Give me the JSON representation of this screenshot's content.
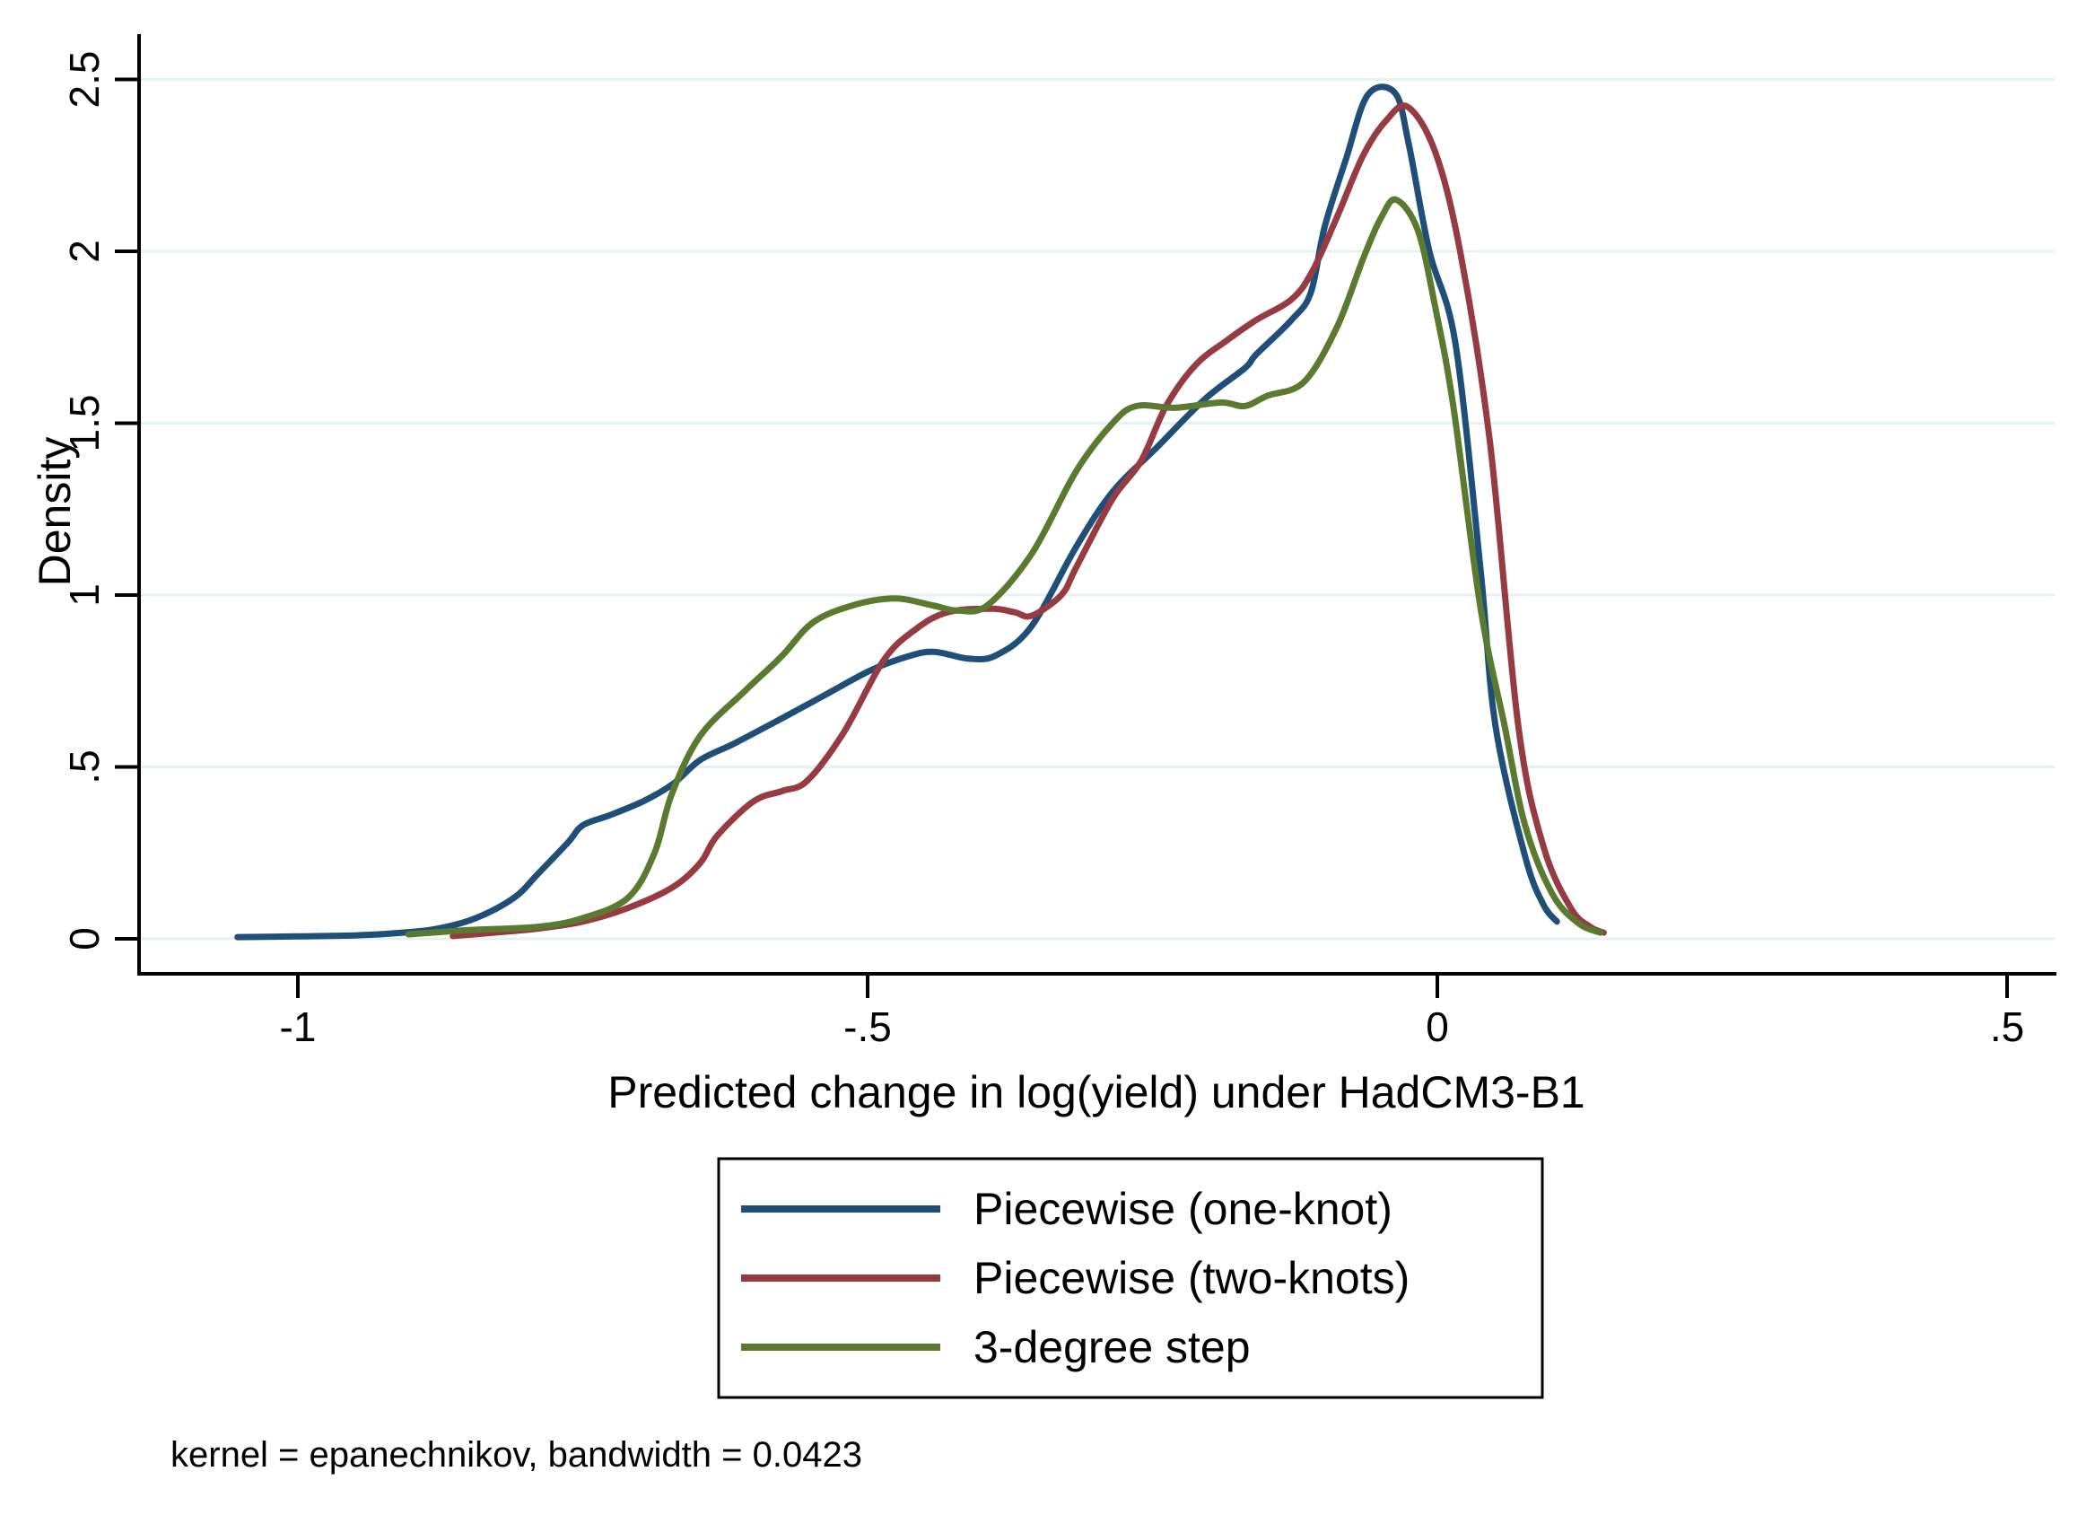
{
  "figure": {
    "note": "kernel = epanechnikov, bandwidth = 0.0423",
    "background": "#ffffff",
    "axis_color": "#000000",
    "gridline_color": "#e8f1f2"
  },
  "axes": {
    "x": {
      "title": "Predicted change in log(yield) under HadCM3-B1",
      "range": [
        -1.139,
        0.542
      ],
      "ticks": [
        {
          "value": -1.0,
          "label": "-1"
        },
        {
          "value": -0.5,
          "label": "-.5"
        },
        {
          "value": 0.0,
          "label": "0"
        },
        {
          "value": 0.5,
          "label": ".5"
        }
      ]
    },
    "y": {
      "title": "Density",
      "range": [
        0,
        2.627
      ],
      "ticks": [
        {
          "value": 0.0,
          "label": "0"
        },
        {
          "value": 0.5,
          "label": ".5"
        },
        {
          "value": 1.0,
          "label": "1"
        },
        {
          "value": 1.5,
          "label": "1.5"
        },
        {
          "value": 2.0,
          "label": "2"
        },
        {
          "value": 2.5,
          "label": "2.5"
        }
      ]
    }
  },
  "legend": {
    "entries": [
      {
        "label": "Piecewise (one-knot)",
        "color": "#1f4e79"
      },
      {
        "label": "Piecewise (two-knots)",
        "color": "#963b42"
      },
      {
        "label": "3-degree step",
        "color": "#5a7a2f"
      }
    ]
  },
  "chart_data": {
    "type": "line",
    "title": "",
    "xlabel": "Predicted change in log(yield) under HadCM3-B1",
    "ylabel": "Density",
    "xlim": [
      -1.139,
      0.542
    ],
    "ylim": [
      0,
      2.627
    ],
    "grid": "horizontal",
    "legend_position": "below",
    "kernel": "epanechnikov",
    "bandwidth": 0.0423,
    "series": [
      {
        "name": "Piecewise (one-knot)",
        "color": "#1f4e79",
        "points": [
          [
            -1.053,
            0.005
          ],
          [
            -1.0,
            0.007
          ],
          [
            -0.95,
            0.01
          ],
          [
            -0.92,
            0.015
          ],
          [
            -0.88,
            0.028
          ],
          [
            -0.844,
            0.06
          ],
          [
            -0.81,
            0.12
          ],
          [
            -0.789,
            0.19
          ],
          [
            -0.763,
            0.28
          ],
          [
            -0.75,
            0.33
          ],
          [
            -0.726,
            0.36
          ],
          [
            -0.697,
            0.4
          ],
          [
            -0.671,
            0.45
          ],
          [
            -0.647,
            0.52
          ],
          [
            -0.616,
            0.57
          ],
          [
            -0.576,
            0.64
          ],
          [
            -0.537,
            0.71
          ],
          [
            -0.498,
            0.78
          ],
          [
            -0.466,
            0.82
          ],
          [
            -0.442,
            0.835
          ],
          [
            -0.411,
            0.815
          ],
          [
            -0.387,
            0.825
          ],
          [
            -0.356,
            0.91
          ],
          [
            -0.317,
            1.14
          ],
          [
            -0.285,
            1.3
          ],
          [
            -0.246,
            1.43
          ],
          [
            -0.204,
            1.57
          ],
          [
            -0.169,
            1.66
          ],
          [
            -0.159,
            1.7
          ],
          [
            -0.128,
            1.8
          ],
          [
            -0.111,
            1.88
          ],
          [
            -0.099,
            2.07
          ],
          [
            -0.08,
            2.27
          ],
          [
            -0.061,
            2.455
          ],
          [
            -0.037,
            2.46
          ],
          [
            -0.025,
            2.31
          ],
          [
            -0.007,
            2.0
          ],
          [
            0.016,
            1.73
          ],
          [
            0.038,
            1.07
          ],
          [
            0.051,
            0.62
          ],
          [
            0.077,
            0.24
          ],
          [
            0.093,
            0.1
          ],
          [
            0.105,
            0.05
          ]
        ]
      },
      {
        "name": "Piecewise (two-knots)",
        "color": "#963b42",
        "points": [
          [
            -0.864,
            0.008
          ],
          [
            -0.82,
            0.02
          ],
          [
            -0.789,
            0.03
          ],
          [
            -0.75,
            0.05
          ],
          [
            -0.71,
            0.09
          ],
          [
            -0.671,
            0.15
          ],
          [
            -0.647,
            0.22
          ],
          [
            -0.632,
            0.3
          ],
          [
            -0.6,
            0.4
          ],
          [
            -0.575,
            0.43
          ],
          [
            -0.553,
            0.46
          ],
          [
            -0.521,
            0.6
          ],
          [
            -0.486,
            0.81
          ],
          [
            -0.458,
            0.9
          ],
          [
            -0.43,
            0.95
          ],
          [
            -0.391,
            0.96
          ],
          [
            -0.371,
            0.95
          ],
          [
            -0.356,
            0.94
          ],
          [
            -0.33,
            1.0
          ],
          [
            -0.317,
            1.08
          ],
          [
            -0.285,
            1.28
          ],
          [
            -0.26,
            1.39
          ],
          [
            -0.238,
            1.55
          ],
          [
            -0.212,
            1.67
          ],
          [
            -0.185,
            1.74
          ],
          [
            -0.159,
            1.8
          ],
          [
            -0.128,
            1.86
          ],
          [
            -0.11,
            1.94
          ],
          [
            -0.088,
            2.1
          ],
          [
            -0.065,
            2.28
          ],
          [
            -0.045,
            2.38
          ],
          [
            -0.026,
            2.42
          ],
          [
            -0.002,
            2.29
          ],
          [
            0.02,
            2.0
          ],
          [
            0.046,
            1.45
          ],
          [
            0.071,
            0.62
          ],
          [
            0.093,
            0.27
          ],
          [
            0.117,
            0.09
          ],
          [
            0.134,
            0.035
          ],
          [
            0.146,
            0.018
          ]
        ]
      },
      {
        "name": "3-degree step",
        "color": "#5a7a2f",
        "points": [
          [
            -0.903,
            0.013
          ],
          [
            -0.852,
            0.025
          ],
          [
            -0.789,
            0.035
          ],
          [
            -0.75,
            0.06
          ],
          [
            -0.71,
            0.12
          ],
          [
            -0.687,
            0.25
          ],
          [
            -0.672,
            0.42
          ],
          [
            -0.647,
            0.59
          ],
          [
            -0.608,
            0.72
          ],
          [
            -0.576,
            0.82
          ],
          [
            -0.548,
            0.92
          ],
          [
            -0.513,
            0.97
          ],
          [
            -0.476,
            0.99
          ],
          [
            -0.443,
            0.97
          ],
          [
            -0.421,
            0.955
          ],
          [
            -0.395,
            0.97
          ],
          [
            -0.356,
            1.12
          ],
          [
            -0.317,
            1.36
          ],
          [
            -0.285,
            1.5
          ],
          [
            -0.264,
            1.55
          ],
          [
            -0.23,
            1.545
          ],
          [
            -0.19,
            1.56
          ],
          [
            -0.169,
            1.55
          ],
          [
            -0.149,
            1.58
          ],
          [
            -0.117,
            1.62
          ],
          [
            -0.088,
            1.78
          ],
          [
            -0.065,
            1.98
          ],
          [
            -0.049,
            2.1
          ],
          [
            -0.036,
            2.15
          ],
          [
            -0.017,
            2.06
          ],
          [
            -0.002,
            1.84
          ],
          [
            0.014,
            1.55
          ],
          [
            0.038,
            0.96
          ],
          [
            0.059,
            0.62
          ],
          [
            0.077,
            0.33
          ],
          [
            0.101,
            0.13
          ],
          [
            0.124,
            0.045
          ],
          [
            0.143,
            0.018
          ]
        ]
      }
    ]
  }
}
